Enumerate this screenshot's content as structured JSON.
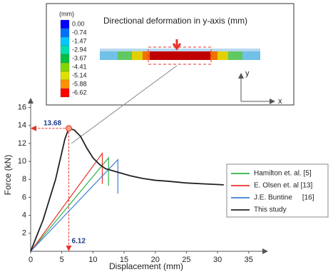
{
  "inset": {
    "title": "Directional deformation in y-axis (mm)",
    "unit": "(mm)",
    "colorbar_labels": [
      "0.00",
      "-0.74",
      "-1.47",
      "-2.94",
      "-3.67",
      "-4.41",
      "-5.14",
      "-5.88",
      "-6.62"
    ],
    "colorbar_colors": [
      "#0000ff",
      "#0070ff",
      "#00c8ff",
      "#00e0b0",
      "#00c040",
      "#80d800",
      "#e0e000",
      "#ff9000",
      "#ff0000"
    ],
    "axis_y": "y",
    "axis_x": "x"
  },
  "chart_data": {
    "type": "line",
    "xlabel": "Displacement (mm)",
    "ylabel": "Force (kN)",
    "xlim": [
      0,
      38
    ],
    "ylim": [
      0,
      17
    ],
    "xticks": [
      0,
      5,
      10,
      15,
      20,
      25,
      30,
      35
    ],
    "yticks": [
      2,
      4,
      6,
      8,
      10,
      12,
      14,
      16
    ],
    "peak": {
      "x": 6.12,
      "y": 13.68
    },
    "series": [
      {
        "name": "Hamilton et. al. [5]",
        "color": "#2db34a",
        "x": [
          0,
          12.5,
          12.5
        ],
        "values": [
          0,
          10.4,
          7.3
        ]
      },
      {
        "name": "E. Olsen et. al [13]",
        "color": "#e8312a",
        "x": [
          0,
          11.5,
          11.5
        ],
        "values": [
          0,
          10.9,
          7.5
        ]
      },
      {
        "name": "J.E. Buntine     [16]",
        "color": "#3a7fd5",
        "x": [
          0,
          14,
          14
        ],
        "values": [
          0,
          10.2,
          6.4
        ]
      },
      {
        "name": "This study",
        "color": "#222222",
        "x": [
          0,
          2,
          4,
          5.5,
          6.12,
          7,
          8,
          9,
          10,
          11,
          12,
          14,
          16,
          18,
          20,
          22,
          25,
          28,
          31
        ],
        "values": [
          0,
          3.5,
          8,
          12.5,
          13.68,
          13.5,
          12.8,
          11.5,
          10.4,
          9.7,
          9.2,
          8.8,
          8.4,
          8.1,
          7.9,
          7.8,
          7.6,
          7.5,
          7.4
        ]
      }
    ]
  }
}
